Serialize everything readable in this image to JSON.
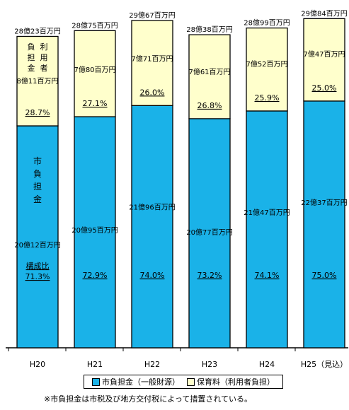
{
  "chart_data": {
    "type": "bar",
    "stacked": true,
    "categories": [
      "H20",
      "H21",
      "H22",
      "H23",
      "H24",
      "H25（見込）"
    ],
    "series": [
      {
        "name": "市負担金（一般財源）",
        "color": "#1ab2e8",
        "values": [
          20.12,
          20.95,
          21.96,
          20.77,
          21.47,
          22.37
        ],
        "labels": [
          "20億12百万円",
          "20億95百万円",
          "21億96百万円",
          "20億77百万円",
          "21億47百万円",
          "22億37百万円"
        ],
        "percents": [
          "71.3%",
          "72.9%",
          "74.0%",
          "73.2%",
          "74.1%",
          "75.0%"
        ]
      },
      {
        "name": "保育料（利用者負担）",
        "color": "#ffffcc",
        "values": [
          8.11,
          7.8,
          7.71,
          7.61,
          7.52,
          7.47
        ],
        "labels": [
          "8億11百万円",
          "7億80百万円",
          "7億71百万円",
          "7億61百万円",
          "7億52百万円",
          "7億47百万円"
        ],
        "percents": [
          "28.7%",
          "27.1%",
          "26.0%",
          "26.8%",
          "25.9%",
          "25.0%"
        ]
      }
    ],
    "totals": [
      28.23,
      28.75,
      29.67,
      28.38,
      28.99,
      29.84
    ],
    "total_labels": [
      "28億23百万円",
      "28億75百万円",
      "29億67百万円",
      "28億38百万円",
      "28億99百万円",
      "29億84百万円"
    ],
    "annotations": {
      "blue_inside": "市負担金",
      "yellow_inside": "利用者負担金",
      "composition": "構成比"
    },
    "ylim": [
      0,
      30
    ],
    "grid": false
  },
  "legend": {
    "items": [
      {
        "label": "市負担金（一般財源）",
        "color": "#1ab2e8"
      },
      {
        "label": "保育料（利用者負担）",
        "color": "#ffffcc"
      }
    ]
  },
  "footnote": "※市負担金は市税及び地方交付税によって措置されている。"
}
